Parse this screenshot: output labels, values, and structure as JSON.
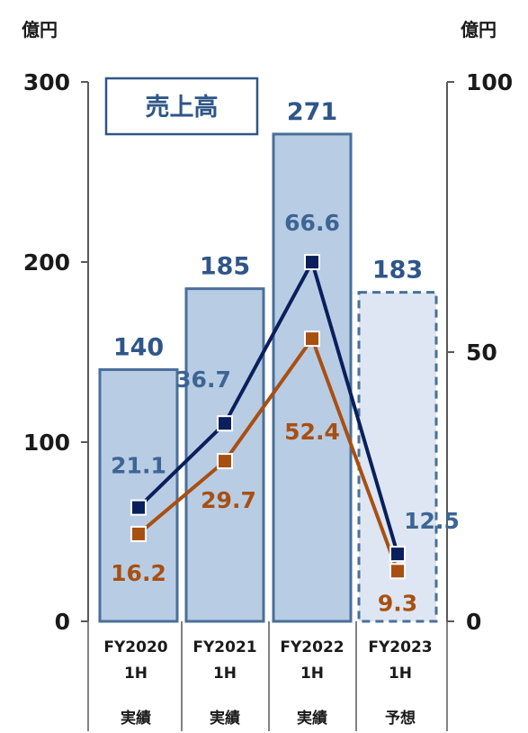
{
  "chart_data": {
    "type": "bar",
    "left_unit": "億円",
    "right_unit": "億円",
    "left_ticks": [
      "300",
      "200",
      "100",
      "0"
    ],
    "right_ticks": [
      "100",
      "50",
      "0"
    ],
    "y_left_lim": [
      0,
      300
    ],
    "y_right_lim": [
      0,
      100
    ],
    "legend_box": "売上高",
    "categories": [
      {
        "period": "FY2020",
        "half": "1H",
        "status": "実績"
      },
      {
        "period": "FY2021",
        "half": "1H",
        "status": "実績"
      },
      {
        "period": "FY2022",
        "half": "1H",
        "status": "実績"
      },
      {
        "period": "FY2023",
        "half": "1H",
        "status": "予想"
      }
    ],
    "bars": {
      "values": [
        140,
        185,
        271,
        183
      ],
      "labels": [
        "140",
        "185",
        "271",
        "183"
      ],
      "forecast_flags": [
        false,
        false,
        false,
        true
      ],
      "color": "#b8cce4",
      "forecast_color": "#dde6f2",
      "edge_color": "#4a6f99"
    },
    "line_series": [
      {
        "values": [
          21.1,
          36.7,
          66.6,
          12.5
        ],
        "labels": [
          "21.1",
          "36.7",
          "66.6",
          "12.5"
        ],
        "color": "#0a1f5c",
        "label_color": "#3d6594"
      },
      {
        "values": [
          16.2,
          29.7,
          52.4,
          9.3
        ],
        "labels": [
          "16.2",
          "29.7",
          "52.4",
          "9.3"
        ],
        "color": "#a84f12",
        "label_color": "#a84f12"
      }
    ],
    "grid": false
  }
}
